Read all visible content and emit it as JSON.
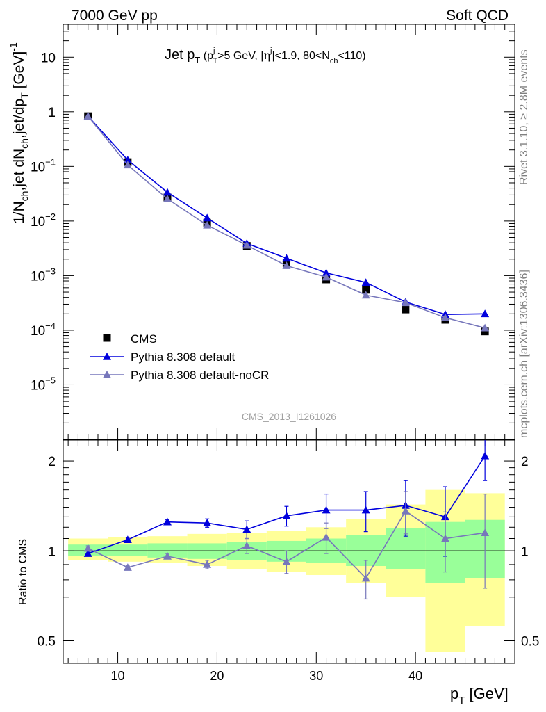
{
  "header": {
    "left": "7000 GeV pp",
    "right": "Soft QCD"
  },
  "side_labels": {
    "rivet": "Rivet 3.1.10, ≥ 2.8M events",
    "mcplots": "mcplots.cern.ch [arXiv:1306.3436]"
  },
  "watermark": "CMS_2013_I1261026",
  "chart_data": [
    {
      "type": "scatter",
      "panel": "main",
      "title": "Jet p_T (p_T^j>5 GeV, |η^j|<1.9, 80<N_ch<110)",
      "ylabel": "1/N_ch,jet dN_ch,jet/dp_T [GeV]^-1",
      "y_scale": "log",
      "xlim": [
        4.5,
        50
      ],
      "ylim": [
        1e-06,
        40
      ],
      "y_ticks": [
        "10^-5",
        "10^-4",
        "10^-3",
        "10^-2",
        "10^-1",
        "1",
        "10"
      ],
      "legend_position": "lower-left",
      "x": [
        7,
        11,
        15,
        19,
        23,
        27,
        31,
        35,
        39,
        43,
        47
      ],
      "series": [
        {
          "name": "CMS",
          "color": "#000000",
          "marker": "square",
          "values": [
            0.83,
            0.12,
            0.027,
            0.0093,
            0.0035,
            0.0017,
            0.00085,
            0.00055,
            0.00024,
            0.000155,
            9.5e-05
          ]
        },
        {
          "name": "Pythia 8.308 default",
          "color": "#0000dd",
          "marker": "triangle",
          "values": [
            0.83,
            0.131,
            0.0336,
            0.0114,
            0.0039,
            0.00208,
            0.00112,
            0.00075,
            0.00033,
            0.000195,
            0.0002
          ]
        },
        {
          "name": "Pythia 8.308 default-noCR",
          "color": "#7777bb",
          "marker": "triangle",
          "values": [
            0.83,
            0.106,
            0.0255,
            0.0084,
            0.0036,
            0.00152,
            0.00094,
            0.00044,
            0.00032,
            0.00017,
            0.00011
          ]
        }
      ]
    },
    {
      "type": "scatter",
      "panel": "ratio",
      "xlabel": "p_T [GeV]",
      "ylabel": "Ratio to CMS",
      "y_scale": "log",
      "xlim": [
        4.5,
        50
      ],
      "ylim": [
        0.42,
        2.35
      ],
      "x_ticks": [
        10,
        20,
        30,
        40
      ],
      "y_ticks": [
        0.5,
        1,
        2
      ],
      "x": [
        7,
        11,
        15,
        19,
        23,
        27,
        31,
        35,
        39,
        43,
        47
      ],
      "bins": [
        [
          5,
          9
        ],
        [
          9,
          13
        ],
        [
          13,
          17
        ],
        [
          17,
          21
        ],
        [
          21,
          25
        ],
        [
          25,
          29
        ],
        [
          29,
          33
        ],
        [
          33,
          37
        ],
        [
          37,
          41
        ],
        [
          41,
          45
        ],
        [
          45,
          49
        ]
      ],
      "band_inner": [
        [
          0.96,
          1.05
        ],
        [
          0.96,
          1.05
        ],
        [
          0.95,
          1.06
        ],
        [
          0.94,
          1.06
        ],
        [
          0.93,
          1.07
        ],
        [
          0.92,
          1.08
        ],
        [
          0.91,
          1.1
        ],
        [
          0.89,
          1.13
        ],
        [
          0.87,
          1.19
        ],
        [
          0.78,
          1.25
        ],
        [
          0.81,
          1.27
        ]
      ],
      "band_outer": [
        [
          0.93,
          1.1
        ],
        [
          0.92,
          1.11
        ],
        [
          0.91,
          1.12
        ],
        [
          0.89,
          1.14
        ],
        [
          0.87,
          1.15
        ],
        [
          0.85,
          1.17
        ],
        [
          0.83,
          1.2
        ],
        [
          0.78,
          1.28
        ],
        [
          0.7,
          1.43
        ],
        [
          0.46,
          1.6
        ],
        [
          0.56,
          1.56
        ]
      ],
      "series": [
        {
          "name": "Pythia 8.308 default",
          "color": "#0000dd",
          "values": [
            0.98,
            1.09,
            1.25,
            1.24,
            1.18,
            1.31,
            1.37,
            1.37,
            1.42,
            1.3,
            2.08
          ],
          "err": [
            0.02,
            0.02,
            0.02,
            0.04,
            0.08,
            0.1,
            0.18,
            0.21,
            0.3,
            0.34,
            0.36
          ]
        },
        {
          "name": "Pythia 8.308 default-noCR",
          "color": "#7777bb",
          "values": [
            1.02,
            0.88,
            0.96,
            0.9,
            1.04,
            0.92,
            1.11,
            0.81,
            1.36,
            1.1,
            1.15
          ],
          "err": [
            0.02,
            0.01,
            0.02,
            0.03,
            0.06,
            0.08,
            0.13,
            0.12,
            0.22,
            0.25,
            0.4
          ]
        }
      ]
    }
  ]
}
